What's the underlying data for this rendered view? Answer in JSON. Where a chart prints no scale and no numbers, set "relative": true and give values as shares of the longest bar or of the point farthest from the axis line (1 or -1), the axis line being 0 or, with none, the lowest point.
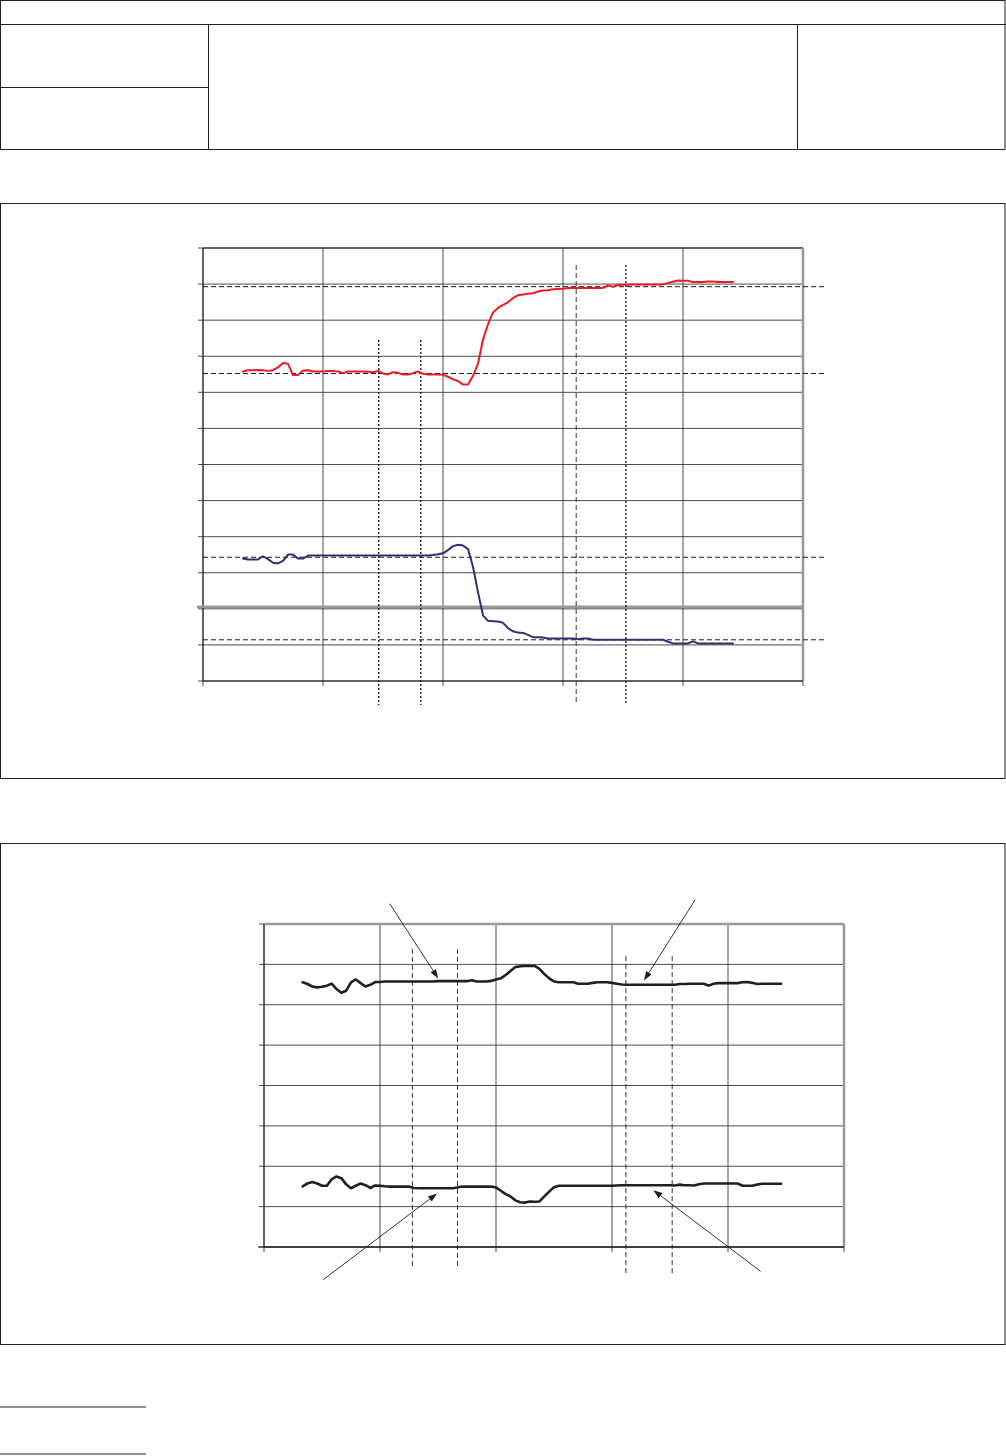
{
  "chart_data": [
    {
      "type": "line",
      "relative": true,
      "grid": true,
      "categories": [
        null,
        null,
        null,
        null,
        null,
        null,
        null,
        null,
        null,
        null,
        null,
        null,
        null,
        null,
        null,
        null,
        null,
        null,
        null,
        null,
        null,
        null,
        null,
        null,
        null,
        null,
        null,
        null,
        null,
        null,
        null,
        null,
        null,
        null,
        null,
        null,
        null,
        null,
        null,
        null,
        null,
        null,
        null,
        null,
        null,
        null,
        null,
        null,
        null,
        null,
        null,
        null,
        null,
        null,
        null,
        null,
        null,
        null,
        null,
        null,
        null,
        null,
        null,
        null,
        null,
        null,
        null,
        null,
        null,
        null,
        null,
        null,
        null,
        null,
        null,
        null,
        null,
        null,
        null,
        null,
        null,
        null,
        null,
        null,
        null,
        null,
        null,
        null,
        null,
        null,
        null,
        null,
        null,
        null,
        null,
        null,
        null,
        null,
        null,
        null,
        null,
        null,
        null,
        null,
        null,
        null,
        null,
        null,
        null,
        null,
        null,
        null,
        null,
        null,
        null,
        null,
        null,
        null,
        null,
        null,
        null
      ],
      "series": [
        {
          "color": "#ed1c24",
          "values": [
            null,
            null,
            null,
            null,
            null,
            null,
            null,
            null,
            0.721,
            0.725,
            0.725,
            0.726,
            0.725,
            0.723,
            0.725,
            0.734,
            0.747,
            0.745,
            0.71,
            0.71,
            0.724,
            0.725,
            0.721,
            0.721,
            0.721,
            0.723,
            0.723,
            0.721,
            0.716,
            0.721,
            0.721,
            0.721,
            0.721,
            0.72,
            0.719,
            0.723,
            0.715,
            0.712,
            0.719,
            0.717,
            0.712,
            0.712,
            0.716,
            0.721,
            0.714,
            0.712,
            0.712,
            0.712,
            0.711,
            0.705,
            0.697,
            0.692,
            0.681,
            0.681,
            0.707,
            0.745,
            0.819,
            0.866,
            0.902,
            0.916,
            0.925,
            0.933,
            0.946,
            0.955,
            0.957,
            0.959,
            0.961,
            0.966,
            0.969,
            0.97,
            0.973,
            0.974,
            0.975,
            0.977,
            0.977,
            0.977,
            0.977,
            0.977,
            0.977,
            0.977,
            0.977,
            0.985,
            0.981,
            0.986,
            0.987,
            0.987,
            0.988,
            0.988,
            0.988,
            0.988,
            0.988,
            0.988,
            0.988,
            0.992,
            0.996,
            1,
            0.999,
            0.999,
            0.995,
            0.995,
            0.995,
            0.997,
            0.997,
            0.995,
            0.995,
            0.995,
            0.995,
            null,
            null,
            null,
            null,
            null,
            null,
            null,
            null,
            null,
            null,
            null,
            null,
            null,
            null
          ]
        },
        {
          "color": "#2e3074",
          "values": [
            null,
            null,
            null,
            null,
            null,
            null,
            null,
            null,
            0.148,
            0.145,
            0.145,
            0.145,
            0.155,
            0.146,
            0.135,
            0.133,
            0.141,
            0.16,
            0.16,
            0.148,
            0.148,
            0.157,
            0.157,
            0.157,
            0.157,
            0.157,
            0.157,
            0.157,
            0.157,
            0.157,
            0.157,
            0.157,
            0.157,
            0.157,
            0.157,
            0.157,
            0.157,
            0.157,
            0.157,
            0.157,
            0.157,
            0.157,
            0.157,
            0.157,
            0.157,
            0.157,
            0.159,
            0.161,
            0.164,
            0.174,
            0.186,
            0.19,
            0.188,
            0.177,
            0.123,
            0.045,
            -0.026,
            -0.043,
            -0.044,
            -0.045,
            -0.049,
            -0.065,
            -0.075,
            -0.079,
            -0.08,
            -0.086,
            -0.093,
            -0.093,
            -0.094,
            -0.097,
            -0.097,
            -0.097,
            -0.097,
            -0.097,
            -0.097,
            -0.099,
            -0.097,
            -0.097,
            -0.101,
            -0.101,
            -0.101,
            -0.101,
            -0.101,
            -0.101,
            -0.101,
            -0.101,
            -0.101,
            -0.101,
            -0.101,
            -0.101,
            -0.101,
            -0.101,
            -0.101,
            -0.107,
            -0.112,
            -0.112,
            -0.112,
            -0.112,
            -0.106,
            -0.112,
            -0.112,
            -0.112,
            -0.112,
            -0.112,
            -0.112,
            -0.112,
            -0.112,
            null,
            null,
            null,
            null,
            null,
            null,
            null,
            null,
            null,
            null,
            null,
            null,
            null,
            null
          ]
        }
      ],
      "ref_lines": [
        {
          "axis": "y",
          "value": 0.981,
          "line_style": "dashed",
          "color": "#000000"
        },
        {
          "axis": "y",
          "value": 0.715,
          "line_style": "dashed",
          "color": "#000000"
        },
        {
          "axis": "y",
          "value": 0.152,
          "line_style": "dashed",
          "color": "#000000"
        },
        {
          "axis": "y",
          "value": -0.101,
          "line_style": "dashed",
          "color": "#000000"
        }
      ]
    },
    {
      "type": "line",
      "relative": true,
      "grid": true,
      "categories": [
        null,
        null,
        null,
        null,
        null,
        null,
        null,
        null,
        null,
        null,
        null,
        null,
        null,
        null,
        null,
        null,
        null,
        null,
        null,
        null,
        null,
        null,
        null,
        null,
        null,
        null,
        null,
        null,
        null,
        null,
        null,
        null,
        null,
        null,
        null,
        null,
        null,
        null,
        null,
        null,
        null,
        null,
        null,
        null,
        null,
        null,
        null,
        null,
        null,
        null,
        null,
        null,
        null,
        null,
        null,
        null,
        null,
        null,
        null,
        null,
        null,
        null,
        null,
        null,
        null,
        null,
        null,
        null,
        null,
        null,
        null,
        null,
        null,
        null,
        null,
        null,
        null,
        null,
        null,
        null,
        null,
        null,
        null,
        null,
        null,
        null,
        null,
        null,
        null,
        null,
        null,
        null,
        null,
        null,
        null,
        null,
        null,
        null,
        null,
        null,
        null,
        null,
        null,
        null,
        null,
        null,
        null,
        null,
        null,
        null,
        null,
        null,
        null,
        null,
        null,
        null,
        null,
        null,
        null,
        null,
        null
      ],
      "series": [
        {
          "color": "#231f20",
          "values": [
            null,
            null,
            null,
            null,
            null,
            null,
            null,
            null,
            0.942,
            0.936,
            0.927,
            0.924,
            0.926,
            0.93,
            0.937,
            0.918,
            0.905,
            0.912,
            0.942,
            0.952,
            0.939,
            0.927,
            0.933,
            0.943,
            0.943,
            0.945,
            0.945,
            0.945,
            0.945,
            0.945,
            0.945,
            0.945,
            0.945,
            0.945,
            0.945,
            0.945,
            0.946,
            0.946,
            0.946,
            0.946,
            0.946,
            0.946,
            0.946,
            0.949,
            0.945,
            0.945,
            0.945,
            0.947,
            0.952,
            0.956,
            0.968,
            0.982,
            0.996,
            0.999,
            1,
            1,
            1,
            0.99,
            0.971,
            0.956,
            0.945,
            0.942,
            0.942,
            0.942,
            0.942,
            0.937,
            0.937,
            0.937,
            0.94,
            0.942,
            0.942,
            0.942,
            0.94,
            0.937,
            0.934,
            0.933,
            0.933,
            0.933,
            0.933,
            0.933,
            0.933,
            0.933,
            0.933,
            0.933,
            0.933,
            0.933,
            0.936,
            0.936,
            0.937,
            0.937,
            0.937,
            0.937,
            0.93,
            0.937,
            0.939,
            0.939,
            0.939,
            0.939,
            0.939,
            0.942,
            0.943,
            0.94,
            0.936,
            0.937,
            0.937,
            0.937,
            0.937,
            0.937,
            null,
            null,
            null,
            null,
            null,
            null,
            null,
            null,
            null,
            null,
            null,
            null,
            null
          ]
        },
        {
          "color": "#231f20",
          "values": [
            null,
            null,
            null,
            null,
            null,
            null,
            null,
            null,
            0.216,
            0.226,
            0.231,
            0.226,
            0.218,
            0.218,
            0.241,
            0.251,
            0.245,
            0.223,
            0.209,
            0.218,
            0.226,
            0.22,
            0.21,
            0.219,
            0.218,
            0.216,
            0.215,
            0.215,
            0.215,
            0.215,
            0.215,
            0.21,
            0.209,
            0.209,
            0.209,
            0.209,
            0.209,
            0.209,
            0.209,
            0.209,
            0.212,
            0.215,
            0.215,
            0.215,
            0.215,
            0.215,
            0.215,
            0.215,
            0.212,
            0.2,
            0.188,
            0.18,
            0.166,
            0.159,
            0.158,
            0.162,
            0.161,
            0.162,
            0.18,
            0.197,
            0.213,
            0.218,
            0.218,
            0.218,
            0.218,
            0.218,
            0.218,
            0.218,
            0.218,
            0.218,
            0.218,
            0.218,
            0.218,
            0.219,
            0.22,
            0.22,
            0.22,
            0.22,
            0.22,
            0.22,
            0.22,
            0.22,
            0.22,
            0.22,
            0.22,
            0.219,
            0.222,
            0.22,
            0.22,
            0.219,
            0.223,
            0.226,
            0.226,
            0.226,
            0.226,
            0.226,
            0.226,
            0.226,
            0.226,
            0.218,
            0.218,
            0.218,
            0.222,
            0.225,
            0.225,
            0.225,
            0.225,
            0.225,
            null,
            null,
            null,
            null,
            null,
            null,
            null,
            null,
            null,
            null,
            null,
            null,
            null
          ]
        }
      ]
    }
  ]
}
